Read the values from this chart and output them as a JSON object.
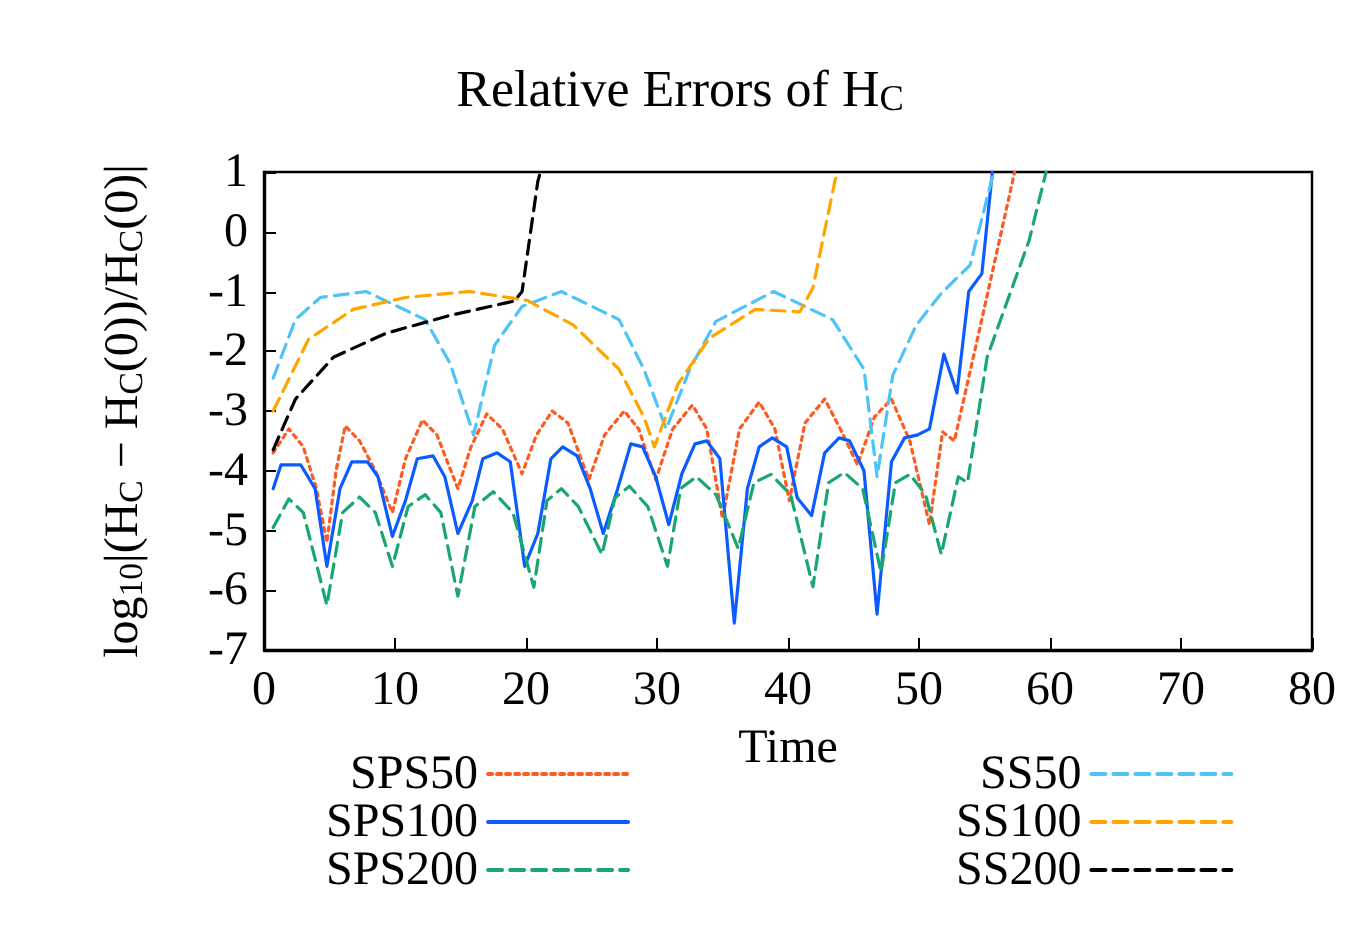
{
  "chart_data": {
    "type": "line",
    "title": "Relative Errors of H$_{C}$",
    "xlabel": "Time",
    "ylabel": "log$_{10}$|(H$_{C}$ − H$_{C}$(0))/H$_{C}$(0)|",
    "xlim": [
      0,
      80
    ],
    "xticks": [
      0,
      10,
      20,
      30,
      40,
      50,
      60,
      70,
      80
    ],
    "ylim": [
      -7,
      1
    ],
    "yticks": [
      -7,
      -6,
      -5,
      -4,
      -3,
      -2,
      -1,
      0,
      1
    ],
    "grid": false,
    "legend": "bottom",
    "marker": "none",
    "series": [
      {
        "name": "SPS50",
        "color": "#ff5a1f",
        "line_style": "dotted",
        "x": [
          0.7,
          1.9,
          3,
          4,
          4.8,
          5.5,
          6.2,
          7.3,
          8.5,
          9.8,
          10.8,
          12.1,
          13.2,
          14.8,
          15.8,
          17,
          18.2,
          19.7,
          20.8,
          22,
          23.2,
          24.8,
          26,
          27.5,
          28.6,
          29.9,
          31.2,
          32.7,
          33.8,
          35,
          36.3,
          37.8,
          39,
          40.1,
          41.3,
          42.8,
          44,
          45.3,
          46.6,
          47.9,
          49.3,
          50.8,
          51.8,
          52.7,
          54.7,
          57.3
        ],
        "values": [
          -3.7,
          -3.3,
          -3.6,
          -4.3,
          -5.2,
          -4,
          -3.25,
          -3.5,
          -4,
          -4.7,
          -3.8,
          -3.15,
          -3.4,
          -4.3,
          -3.6,
          -3.05,
          -3.3,
          -4.05,
          -3.4,
          -3,
          -3.2,
          -4.15,
          -3.4,
          -3,
          -3.3,
          -4.15,
          -3.3,
          -2.9,
          -3.3,
          -4.8,
          -3.3,
          -2.85,
          -3.3,
          -4.5,
          -3.2,
          -2.8,
          -3.3,
          -3.9,
          -3.1,
          -2.8,
          -3.5,
          -4.9,
          -3.35,
          -3.5,
          -1.56,
          1
        ]
      },
      {
        "name": "SPS100",
        "color": "#0a5cff",
        "line_style": "solid",
        "x": [
          0.7,
          1.3,
          2.8,
          3.9,
          4.8,
          5.8,
          6.7,
          7.9,
          8.7,
          9.8,
          10.8,
          11.7,
          12.9,
          13.8,
          14.8,
          15.9,
          16.7,
          17.8,
          18.8,
          19.9,
          20.9,
          21.9,
          22.8,
          23.9,
          24.9,
          25.9,
          27,
          28,
          28.9,
          29.9,
          30.9,
          31.9,
          32.9,
          33.8,
          34.8,
          35.9,
          36.9,
          37.8,
          38.8,
          39.9,
          40.7,
          41.8,
          42.8,
          43.9,
          44.7,
          45.8,
          46.8,
          47.9,
          48.9,
          49.9,
          50.8,
          51.9,
          52.9,
          53.8,
          54.8,
          55.6
        ],
        "values": [
          -4.3,
          -3.9,
          -3.9,
          -4.3,
          -5.6,
          -4.3,
          -3.85,
          -3.85,
          -4.1,
          -5.1,
          -4.5,
          -3.8,
          -3.75,
          -4.1,
          -5.05,
          -4.5,
          -3.8,
          -3.7,
          -3.85,
          -5.6,
          -5.05,
          -3.8,
          -3.6,
          -3.75,
          -4.3,
          -5.05,
          -4.3,
          -3.55,
          -3.6,
          -4.1,
          -4.9,
          -4.05,
          -3.55,
          -3.5,
          -3.8,
          -6.55,
          -4.3,
          -3.6,
          -3.45,
          -3.6,
          -4.45,
          -4.75,
          -3.7,
          -3.45,
          -3.5,
          -4,
          -6.4,
          -3.85,
          -3.45,
          -3.4,
          -3.3,
          -2.05,
          -2.7,
          -1,
          -0.7,
          1
        ]
      },
      {
        "name": "SPS200",
        "color": "#1aa673",
        "line_style": "dashed",
        "x": [
          0.7,
          1.9,
          3,
          4.8,
          6,
          7.3,
          8.5,
          9.8,
          11,
          12.3,
          13.5,
          14.8,
          16.1,
          17.5,
          19,
          20.6,
          21.6,
          22.7,
          24,
          25.8,
          26.8,
          27.9,
          29.3,
          30.8,
          31.8,
          33,
          34.5,
          36.2,
          37.4,
          38.7,
          40.2,
          41.9,
          43.1,
          44.3,
          45.7,
          47.1,
          48.2,
          49.3,
          50.5,
          51.7,
          53,
          53.7,
          55.2,
          58.4,
          59.7
        ],
        "values": [
          -4.95,
          -4.47,
          -4.7,
          -6.25,
          -4.7,
          -4.44,
          -4.7,
          -5.6,
          -4.6,
          -4.4,
          -4.7,
          -6.1,
          -4.6,
          -4.35,
          -4.7,
          -5.95,
          -4.5,
          -4.3,
          -4.6,
          -5.4,
          -4.45,
          -4.26,
          -4.6,
          -5.6,
          -4.3,
          -4.1,
          -4.4,
          -5.3,
          -4.2,
          -4.06,
          -4.4,
          -5.94,
          -4.2,
          -4.03,
          -4.3,
          -5.7,
          -4.2,
          -4.06,
          -4.4,
          -5.4,
          -4.1,
          -4.2,
          -2.1,
          -0.15,
          1
        ]
      },
      {
        "name": "SS50",
        "color": "#4fc3f7",
        "line_style": "dashed",
        "x": [
          0.7,
          2.4,
          4.3,
          7.8,
          12.3,
          14.2,
          16,
          17.6,
          19.7,
          22.7,
          27.1,
          29,
          30.7,
          32.5,
          34.5,
          38.9,
          43.4,
          45.8,
          46.8,
          48,
          49.8,
          51.7,
          53.9,
          55.7
        ],
        "values": [
          -2.45,
          -1.47,
          -1.1,
          -1,
          -1.47,
          -2.2,
          -3.4,
          -1.9,
          -1.25,
          -1,
          -1.47,
          -2.3,
          -3.3,
          -2.3,
          -1.5,
          -1,
          -1.47,
          -2.3,
          -4.1,
          -2.4,
          -1.56,
          -1.03,
          -0.56,
          1
        ]
      },
      {
        "name": "SS100",
        "color": "#ffa500",
        "line_style": "dashed",
        "x": [
          0.7,
          3.4,
          6.8,
          10.8,
          15.7,
          20.1,
          23.6,
          27.1,
          29,
          29.8,
          31.6,
          34,
          37.5,
          40.9,
          41.9,
          43.6,
          43.8
        ],
        "values": [
          -3,
          -1.8,
          -1.3,
          -1.1,
          -1,
          -1.15,
          -1.56,
          -2.3,
          -3.1,
          -3.6,
          -2.55,
          -1.78,
          -1.3,
          -1.34,
          -0.94,
          0.87,
          1
        ]
      },
      {
        "name": "SS200",
        "color": "#000000",
        "line_style": "dashed",
        "x": [
          0.7,
          2.4,
          5.3,
          9.3,
          14.2,
          19.1,
          19.7,
          20.9,
          21.1
        ],
        "values": [
          -3.65,
          -2.8,
          -2.1,
          -1.7,
          -1.4,
          -1.16,
          -1,
          0.84,
          1
        ]
      }
    ]
  }
}
